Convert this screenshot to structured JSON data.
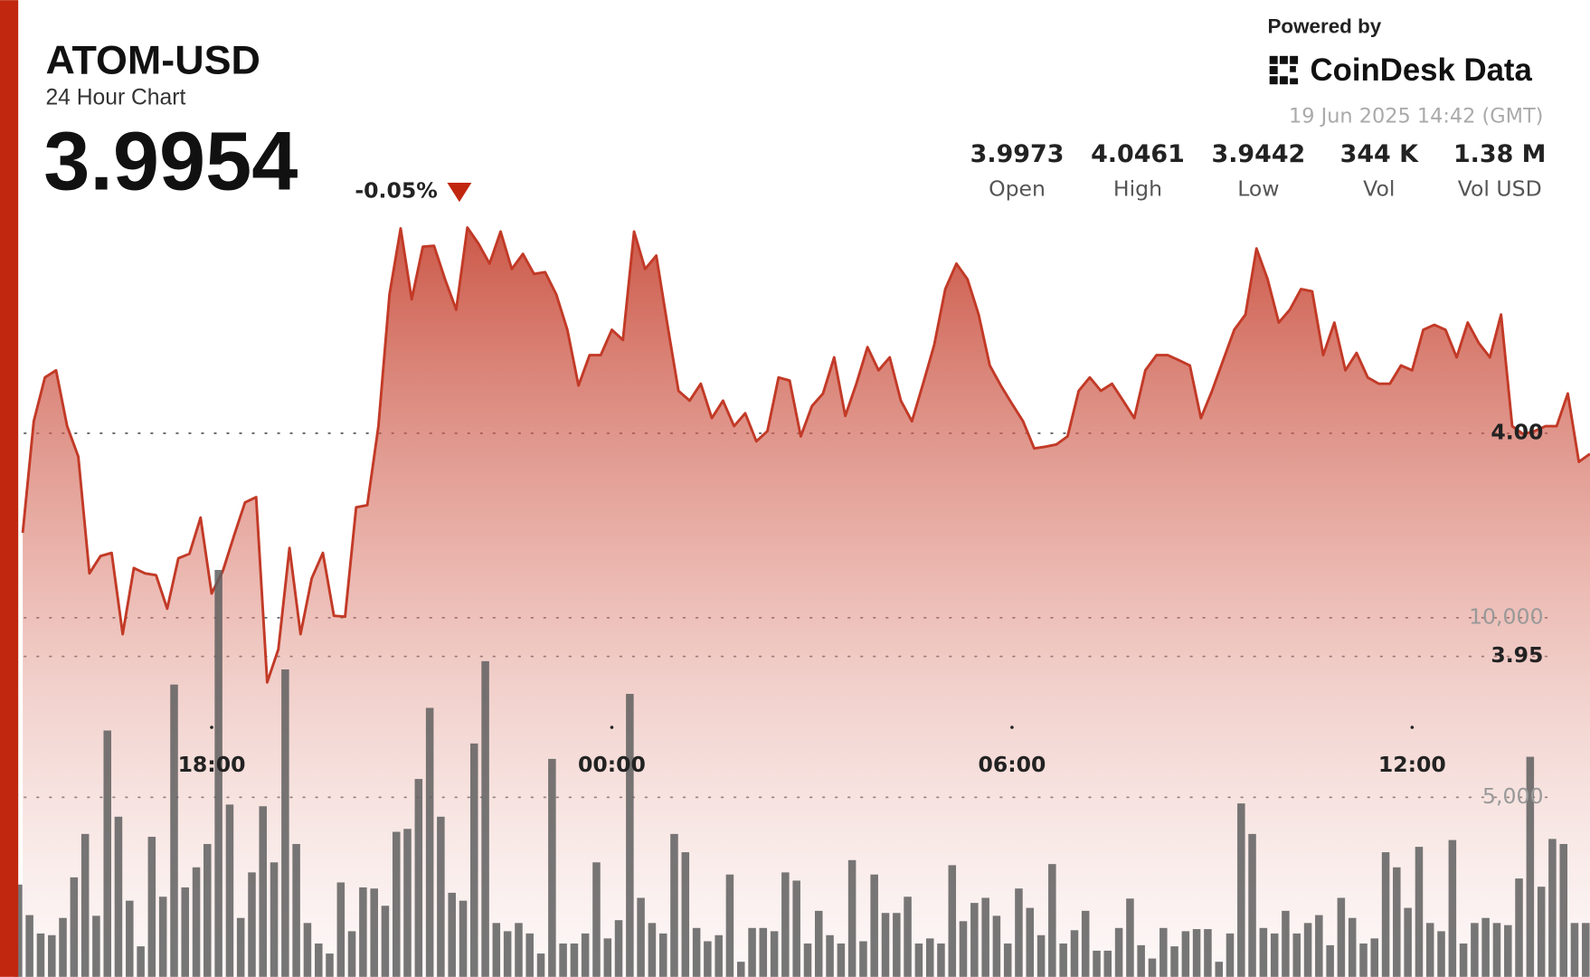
{
  "header": {
    "powered_by": "Powered by",
    "brand": "CoinDesk Data",
    "timestamp": "19 Jun 2025 14:42 (GMT)",
    "price": "3.9954",
    "change": "-0.05%",
    "stats": [
      {
        "value": "3.9973",
        "label": "Open"
      },
      {
        "value": "4.0461",
        "label": "High"
      },
      {
        "value": "3.9442",
        "label": "Low"
      },
      {
        "value": "344 K",
        "label": "Vol"
      },
      {
        "value": "1.38 M",
        "label": "Vol USD"
      }
    ]
  },
  "chart_data": {
    "type": "area",
    "title": "ATOM-USD",
    "subtitle": "24 Hour Chart",
    "x": [
      910,
      920,
      930,
      940,
      950,
      960,
      970,
      980,
      990,
      1000,
      1010,
      1020,
      1030,
      1040,
      1050,
      1060,
      1070,
      1080,
      1090,
      1100,
      1110,
      1120,
      1130,
      1140,
      1150,
      1160,
      1170,
      1180,
      1190,
      1200,
      1210,
      1220,
      1230,
      1240,
      1250,
      1260,
      1270,
      1280,
      1290,
      1300,
      1310,
      1320,
      1330,
      1340,
      1350,
      1360,
      1370,
      1380,
      1390,
      1400,
      1410,
      1420,
      1430,
      1440,
      1450,
      1460,
      1470,
      1480,
      1490,
      1500,
      1510,
      1520,
      1530,
      1540,
      1550,
      1560,
      1570,
      1580,
      1590,
      1600,
      1610,
      1620,
      1630,
      1640,
      1650,
      1660,
      1670,
      1680,
      1690,
      1700,
      1710,
      1720,
      1730,
      1740,
      1750,
      1760,
      1770,
      1780,
      1790,
      1800,
      1810,
      1820,
      1830,
      1840,
      1850,
      1860,
      1870,
      1880,
      1890,
      1900,
      1910,
      1920,
      1930,
      1940,
      1950,
      1960,
      1970,
      1980,
      1990,
      2000,
      2010,
      2020,
      2030,
      2040,
      2050,
      2060,
      2070,
      2080,
      2090,
      2100,
      2110,
      2120,
      2130,
      2140,
      2150,
      2160,
      2170,
      2180,
      2190,
      2200,
      2210,
      2220,
      2230,
      2240,
      2250,
      2260,
      2270,
      2280,
      2290,
      2300,
      2310,
      2320
    ],
    "xlim": [
      906,
      2320
    ],
    "xticks": [
      {
        "value": 1080,
        "label": "18:00"
      },
      {
        "value": 1440,
        "label": "00:00"
      },
      {
        "value": 1800,
        "label": "06:00"
      },
      {
        "value": 2160,
        "label": "12:00"
      }
    ],
    "ylim": [
      3.8782,
      4.0516
    ],
    "yticks": [
      {
        "value": 3.95,
        "label": "3.95"
      },
      {
        "value": 4,
        "label": "4.00"
      }
    ],
    "y2lim": [
      0,
      21550
    ],
    "y2ticks": [
      {
        "value": 5000,
        "label": "5,000"
      },
      {
        "value": 10000,
        "label": "10,000"
      }
    ],
    "grid": true,
    "series": [
      {
        "type": "area",
        "color": "#c23a27",
        "values": [
          3.9777,
          4.0027,
          4.0125,
          4.0141,
          4.0016,
          3.9948,
          3.9686,
          3.9725,
          3.9732,
          3.955,
          3.9698,
          3.9686,
          3.9682,
          3.9607,
          3.972,
          3.973,
          3.9811,
          3.9641,
          3.9691,
          3.977,
          3.9845,
          3.9857,
          3.9442,
          3.9516,
          3.9743,
          3.955,
          3.9675,
          3.9732,
          3.9591,
          3.9589,
          3.9834,
          3.9839,
          4.0016,
          4.0311,
          4.0459,
          4.03,
          4.0418,
          4.042,
          4.0345,
          4.0277,
          4.0461,
          4.0425,
          4.038,
          4.0452,
          4.0368,
          4.0402,
          4.0357,
          4.0361,
          4.0311,
          4.0232,
          4.0107,
          4.0175,
          4.0175,
          4.0232,
          4.0209,
          4.0452,
          4.0368,
          4.0398,
          4.0243,
          4.0095,
          4.0073,
          4.0111,
          4.0034,
          4.0073,
          4.0016,
          4.0045,
          3.9982,
          4.0005,
          4.0125,
          4.0118,
          3.9993,
          4.0061,
          4.0089,
          4.017,
          4.0039,
          4.0111,
          4.0193,
          4.0141,
          4.017,
          4.0073,
          4.0027,
          4.0111,
          4.0198,
          4.0323,
          4.038,
          4.0345,
          4.0266,
          4.0152,
          4.0107,
          4.0066,
          4.0027,
          3.9966,
          3.997,
          3.9975,
          3.9993,
          4.0095,
          4.0125,
          4.0095,
          4.0111,
          4.0073,
          4.0034,
          4.0141,
          4.0175,
          4.0175,
          4.0164,
          4.0152,
          4.0034,
          4.0095,
          4.0164,
          4.0232,
          4.0266,
          4.0414,
          4.0345,
          4.0248,
          4.0277,
          4.0323,
          4.0318,
          4.0175,
          4.0248,
          4.0141,
          4.018,
          4.0125,
          4.0111,
          4.0111,
          4.0152,
          4.0141,
          4.0232,
          4.0243,
          4.0232,
          4.017,
          4.0248,
          4.0202,
          4.017,
          4.0266,
          4.0016,
          3.9998,
          4.0005,
          4.0016,
          4.0016,
          4.0089,
          3.9936,
          3.9954
        ]
      },
      {
        "type": "bar",
        "axis": "y2",
        "color": "#5f5f5f",
        "values": [
          2570,
          1720,
          1210,
          1160,
          1640,
          2770,
          3980,
          1700,
          6860,
          4460,
          2120,
          850,
          3900,
          2230,
          8140,
          2490,
          3050,
          3700,
          11330,
          4800,
          1640,
          2910,
          4750,
          3190,
          8560,
          3700,
          1500,
          930,
          650,
          2630,
          1270,
          2490,
          2460,
          1980,
          4040,
          4120,
          5510,
          7490,
          4460,
          2340,
          2120,
          6500,
          8790,
          1500,
          1270,
          1500,
          1210,
          650,
          6070,
          930,
          930,
          1210,
          3190,
          1070,
          1580,
          7880,
          2200,
          1500,
          1210,
          3980,
          3470,
          1360,
          990,
          1160,
          2850,
          420,
          1360,
          1360,
          1270,
          2910,
          2680,
          930,
          1840,
          1160,
          930,
          3250,
          990,
          2850,
          1780,
          1780,
          2230,
          930,
          1070,
          930,
          3110,
          1550,
          2060,
          2200,
          1700,
          930,
          2460,
          1920,
          1160,
          3140,
          930,
          1300,
          1840,
          730,
          730,
          1360,
          2180,
          880,
          510,
          1360,
          850,
          1270,
          1330,
          1330,
          420,
          1210,
          4830,
          3980,
          1360,
          1210,
          1840,
          1210,
          1500,
          1720,
          880,
          2200,
          1640,
          930,
          1070,
          3470,
          3050,
          1920,
          3620,
          1500,
          1270,
          3810,
          930,
          1500,
          1640,
          1500,
          1440,
          2740,
          6130,
          2510,
          3840,
          3700,
          1500,
          1500
        ]
      }
    ]
  }
}
